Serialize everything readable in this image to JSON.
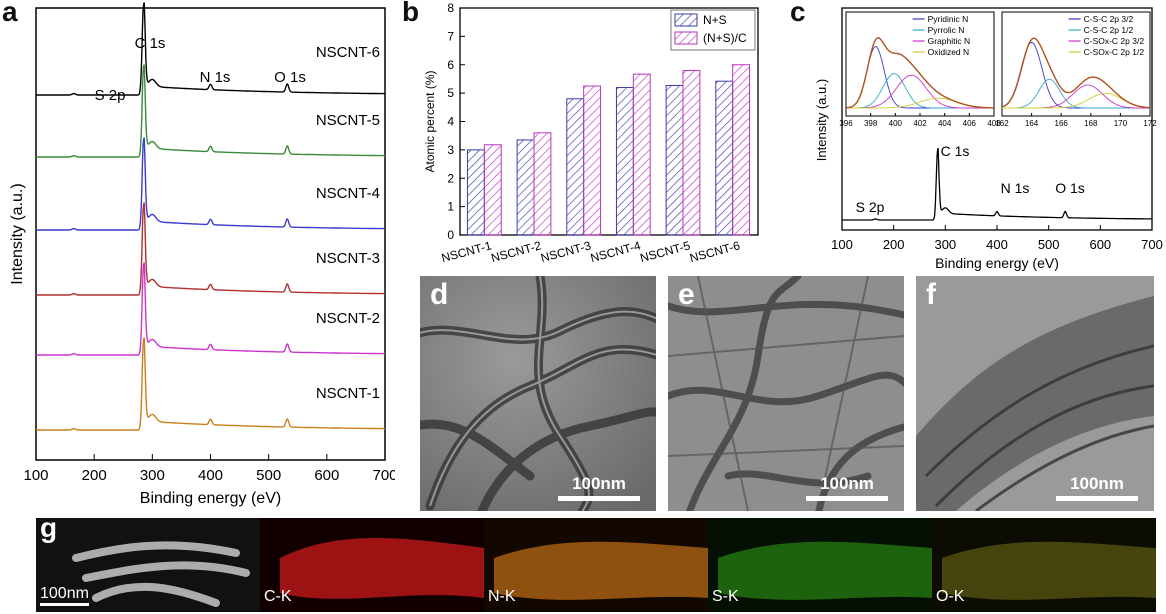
{
  "chart_data": [
    {
      "panel": "a",
      "type": "line",
      "xlabel": "Binding energy (eV)",
      "ylabel": "Intensity (a.u.)",
      "xlim": [
        100,
        700
      ],
      "xticks": [
        100,
        200,
        300,
        400,
        500,
        600,
        700
      ],
      "peak_labels": [
        "S 2p",
        "C 1s",
        "N 1s",
        "O 1s"
      ],
      "series": [
        {
          "name": "NSCNT-6",
          "color": "#000000"
        },
        {
          "name": "NSCNT-5",
          "color": "#3a8a3a"
        },
        {
          "name": "NSCNT-4",
          "color": "#3a3acc"
        },
        {
          "name": "NSCNT-3",
          "color": "#b03030"
        },
        {
          "name": "NSCNT-2",
          "color": "#cc33cc"
        },
        {
          "name": "NSCNT-1",
          "color": "#c8801e"
        }
      ]
    },
    {
      "panel": "b",
      "type": "bar",
      "ylabel": "Atomic percent (%)",
      "ylim": [
        0,
        8
      ],
      "yticks": [
        0,
        1,
        2,
        3,
        4,
        5,
        6,
        7,
        8
      ],
      "categories": [
        "NSCNT-1",
        "NSCNT-2",
        "NSCNT-3",
        "NSCNT-4",
        "NSCNT-5",
        "NSCNT-6"
      ],
      "series": [
        {
          "name": "N+S",
          "color": "#3a3aaa",
          "values": [
            3.0,
            3.35,
            4.8,
            5.2,
            5.27,
            5.42
          ]
        },
        {
          "name": "(N+S)/C",
          "color": "#bb33bb",
          "values": [
            3.18,
            3.6,
            5.25,
            5.67,
            5.8,
            6.0
          ]
        }
      ]
    },
    {
      "panel": "c",
      "type": "line",
      "xlabel": "Binding energy (eV)",
      "ylabel": "Intensity (a.u.)",
      "xlim": [
        100,
        700
      ],
      "xticks": [
        100,
        200,
        300,
        400,
        500,
        600,
        700
      ],
      "peak_labels": [
        "C 1s",
        "N 1s",
        "O 1s",
        "S 2p"
      ],
      "insets": [
        {
          "xlim": [
            396,
            408
          ],
          "xticks": [
            396,
            398,
            400,
            402,
            404,
            406,
            408
          ],
          "legend": [
            {
              "name": "Pyridinic N",
              "color": "#3a3acc"
            },
            {
              "name": "Pyrrolic N",
              "color": "#33aacc"
            },
            {
              "name": "Graphitic N",
              "color": "#cc33cc"
            },
            {
              "name": "Oxidized N",
              "color": "#cccc33"
            }
          ]
        },
        {
          "xlim": [
            162,
            172
          ],
          "xticks": [
            162,
            164,
            166,
            168,
            170,
            172
          ],
          "legend": [
            {
              "name": "C-S-C 2p 3/2",
              "color": "#3a3acc"
            },
            {
              "name": "C-S-C 2p 1/2",
              "color": "#33aacc"
            },
            {
              "name": "C-SOx-C 2p 3/2",
              "color": "#cc33cc"
            },
            {
              "name": "C-SOx-C 2p 1/2",
              "color": "#cccc33"
            }
          ]
        }
      ]
    }
  ],
  "panels": {
    "a": "a",
    "b": "b",
    "c": "c",
    "d": "d",
    "e": "e",
    "f": "f",
    "g": "g"
  },
  "tem": [
    {
      "label": "d",
      "scalebar": "100nm"
    },
    {
      "label": "e",
      "scalebar": "100nm"
    },
    {
      "label": "f",
      "scalebar": "100nm"
    }
  ],
  "maps": [
    {
      "label": "100nm",
      "color": "#ffffff"
    },
    {
      "label": "C-K",
      "color": "#e02020"
    },
    {
      "label": "N-K",
      "color": "#e08a20"
    },
    {
      "label": "S-K",
      "color": "#40c020"
    },
    {
      "label": "O-K",
      "color": "#b0b020"
    }
  ]
}
